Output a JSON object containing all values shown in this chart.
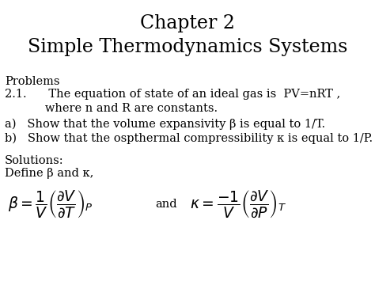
{
  "title_line1": "Chapter 2",
  "title_line2": "Simple Thermodynamics Systems",
  "problems_label": "Problems",
  "problem_21a": "2.1.      The equation of state of an ideal gas is  PV=nRT ,",
  "problem_21b": "           where n and R are constants.",
  "part_a": "a)   Show that the volume expansivity β is equal to 1/T.",
  "part_b": "b)   Show that the ospthermal compressibility κ is equal to 1/P.",
  "solutions_label": "Solutions:",
  "define_label": "Define β and κ,",
  "beta_eq": "$\\beta = \\dfrac{1}{V}\\left(\\dfrac{\\partial V}{\\partial T}\\right)_P$",
  "and_text": "and",
  "kappa_eq": "$\\kappa = \\dfrac{-1}{V}\\left(\\dfrac{\\partial V}{\\partial P}\\right)_T$",
  "bg_color": "#ffffff",
  "text_color": "#000000",
  "title_fontsize": 17,
  "body_fontsize": 10.5,
  "math_fontsize": 13.5
}
